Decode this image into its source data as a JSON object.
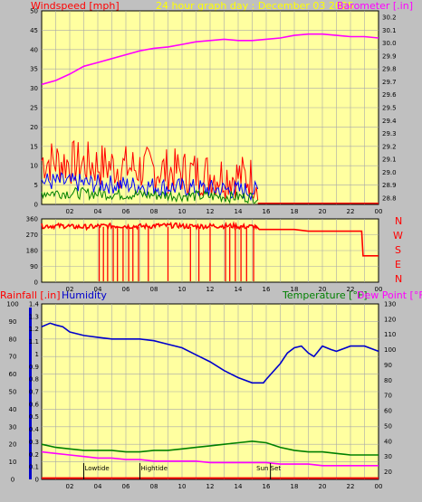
{
  "header": {
    "left": "Windspeed [mph]",
    "center": "24 hour graph day : December 03 2025",
    "right": "Barometer [.in]",
    "left_color": "#ff0000",
    "center_color": "#ffff00",
    "right_color": "#ff00ff"
  },
  "compass": [
    "N",
    "W",
    "S",
    "E",
    "N"
  ],
  "bottom_labels": {
    "rainfall": "Rainfall [.in]",
    "humidity": "Humidity",
    "temperature": "Temperature [°F]",
    "dewpoint": "Dew Point [°F]"
  },
  "chart_data": [
    {
      "type": "line",
      "x_ticks": [
        "02",
        "04",
        "06",
        "08",
        "10",
        "12",
        "14",
        "16",
        "18",
        "20",
        "22",
        "00"
      ],
      "ylabel": "Windspeed [mph]",
      "y2label": "Barometer [.in]",
      "ylim": [
        0,
        50
      ],
      "y2lim": [
        28.75,
        30.25
      ],
      "y_ticks": [
        0,
        5,
        10,
        15,
        20,
        25,
        30,
        35,
        40,
        45,
        50
      ],
      "y2_ticks": [
        28.8,
        28.9,
        29.0,
        29.1,
        29.2,
        29.3,
        29.4,
        29.5,
        29.6,
        29.7,
        29.8,
        29.9,
        30.0,
        30.1,
        30.2
      ],
      "series": [
        {
          "name": "Barometer [.in]",
          "color": "#ff00ff",
          "x": [
            0,
            1,
            2,
            3,
            4,
            5,
            6,
            7,
            8,
            9,
            10,
            11,
            12,
            13,
            14,
            15,
            16,
            17,
            18,
            19,
            20,
            21,
            22,
            23,
            24
          ],
          "values": [
            29.68,
            29.71,
            29.76,
            29.82,
            29.85,
            29.88,
            29.91,
            29.94,
            29.96,
            29.97,
            29.99,
            30.01,
            30.02,
            30.03,
            30.02,
            30.02,
            30.03,
            30.04,
            30.06,
            30.07,
            30.07,
            30.06,
            30.05,
            30.05,
            30.04
          ]
        }
      ]
    },
    {
      "type": "line",
      "x_ticks": [
        "02",
        "04",
        "06",
        "08",
        "10",
        "12",
        "14",
        "16",
        "18",
        "20",
        "22",
        "00"
      ],
      "ylim": [
        0,
        360
      ],
      "y_ticks": [
        0,
        90,
        180,
        270,
        360
      ],
      "series": [
        {
          "name": "Wind Direction",
          "color": "#ff0000",
          "x": [
            0,
            2,
            4,
            6,
            8,
            10,
            12,
            14,
            15.3,
            15.5,
            16,
            18,
            19,
            20,
            21,
            22,
            22.8,
            22.9,
            24
          ],
          "values": [
            320,
            315,
            320,
            318,
            322,
            318,
            320,
            316,
            318,
            300,
            300,
            300,
            290,
            290,
            290,
            290,
            290,
            150,
            150
          ]
        }
      ]
    },
    {
      "type": "line",
      "x_ticks": [
        "02",
        "04",
        "06",
        "08",
        "10",
        "12",
        "14",
        "16",
        "18",
        "20",
        "22",
        "00"
      ],
      "ylabel": "Humidity",
      "y2label": "Temperature [°F]",
      "ylim": [
        0,
        100
      ],
      "y_ticks": [
        0,
        10,
        20,
        30,
        40,
        50,
        60,
        70,
        80,
        90,
        100
      ],
      "y2lim": [
        15,
        130
      ],
      "y2_ticks": [
        20,
        30,
        40,
        50,
        60,
        70,
        80,
        90,
        100,
        110,
        120,
        130
      ],
      "rain_ticks": [
        0,
        0.1,
        0.2,
        0.3,
        0.4,
        0.5,
        0.6,
        0.7,
        0.8,
        0.9,
        1.0,
        1.1,
        1.2,
        1.3,
        1.4
      ],
      "annotations": [
        {
          "label": "Lowtide",
          "x": 3.0
        },
        {
          "label": "Hightide",
          "x": 7.0
        },
        {
          "label": "Sun Set",
          "x": 16.3
        }
      ],
      "series": [
        {
          "name": "Humidity",
          "color": "#0000cc",
          "x": [
            0,
            0.6,
            1,
            1.5,
            2,
            3,
            4,
            5,
            6,
            7,
            8,
            9,
            10,
            11,
            12,
            13,
            14,
            15,
            15.8,
            16,
            17,
            17.5,
            18,
            18.5,
            19,
            19.4,
            20,
            20.6,
            21,
            22,
            22.6,
            23,
            24
          ],
          "values": [
            87,
            89,
            88,
            87,
            84,
            82,
            81,
            80,
            80,
            80,
            79,
            77,
            75,
            71,
            67,
            62,
            58,
            55,
            55,
            57,
            66,
            72,
            75,
            76,
            72,
            70,
            76,
            74,
            73,
            76,
            76,
            76,
            73
          ]
        },
        {
          "name": "Temperature",
          "color": "#008000",
          "x": [
            0,
            1,
            2,
            3,
            4,
            5,
            6,
            7,
            8,
            9,
            10,
            11,
            12,
            13,
            14,
            15,
            16,
            17,
            18,
            19,
            20,
            21,
            22,
            23,
            24
          ],
          "values": [
            38,
            36,
            35,
            34,
            34,
            34,
            33,
            33,
            34,
            34,
            35,
            36,
            37,
            38,
            39,
            40,
            39,
            36,
            34,
            33,
            33,
            32,
            31,
            31,
            31
          ]
        },
        {
          "name": "Dew Point",
          "color": "#ff00ff",
          "x": [
            0,
            1,
            2,
            3,
            4,
            5,
            6,
            7,
            8,
            9,
            10,
            11,
            12,
            13,
            14,
            15,
            16,
            17,
            18,
            19,
            20,
            21,
            22,
            23,
            24
          ],
          "values": [
            33,
            32,
            31,
            30,
            29,
            29,
            28,
            28,
            27,
            27,
            27,
            27,
            26,
            26,
            26,
            26,
            26,
            25,
            25,
            25,
            24,
            24,
            24,
            24,
            24
          ]
        },
        {
          "name": "Rainfall",
          "color": "#ff0000",
          "x": [
            0,
            24
          ],
          "values": [
            0.01,
            0.01
          ]
        }
      ]
    }
  ]
}
